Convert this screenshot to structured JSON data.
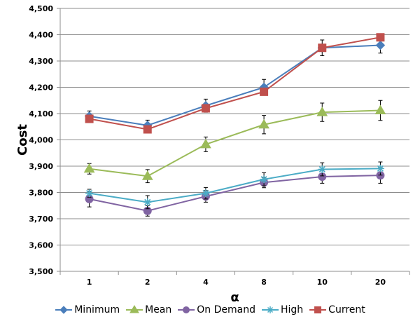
{
  "chart_data": {
    "type": "line",
    "xlabel": "α",
    "ylabel": "Cost",
    "categories": [
      "1",
      "2",
      "4",
      "8",
      "10",
      "20"
    ],
    "ylim": [
      3500,
      4500
    ],
    "ytick_step": 100,
    "ytick_labels": [
      "3,500",
      "3,600",
      "3,700",
      "3,800",
      "3,900",
      "4,000",
      "4,100",
      "4,200",
      "4,300",
      "4,400",
      "4,500"
    ],
    "grid": true,
    "legend_position": "bottom",
    "series": [
      {
        "name": "Minimum",
        "color": "#4a7ebb",
        "marker": "diamond",
        "values": [
          4090,
          4055,
          4130,
          4200,
          4350,
          4360
        ],
        "errors": [
          20,
          20,
          25,
          30,
          0,
          30
        ]
      },
      {
        "name": "Mean",
        "color": "#9bbb59",
        "marker": "triangle",
        "values": [
          3890,
          3862,
          3983,
          4058,
          4105,
          4112
        ],
        "errors": [
          20,
          25,
          28,
          35,
          35,
          38
        ]
      },
      {
        "name": "On Demand",
        "color": "#8064a2",
        "marker": "circle",
        "values": [
          3775,
          3730,
          3785,
          3838,
          3860,
          3865
        ],
        "errors": [
          30,
          20,
          22,
          20,
          25,
          30
        ]
      },
      {
        "name": "High",
        "color": "#4bacc6",
        "marker": "star",
        "values": [
          3797,
          3763,
          3797,
          3850,
          3888,
          3891
        ],
        "errors": [
          15,
          25,
          22,
          25,
          25,
          25
        ]
      },
      {
        "name": "Current",
        "color": "#c0504d",
        "marker": "square",
        "values": [
          4080,
          4040,
          4120,
          4183,
          4350,
          4390
        ],
        "errors": [
          0,
          0,
          0,
          0,
          30,
          0
        ]
      }
    ]
  }
}
